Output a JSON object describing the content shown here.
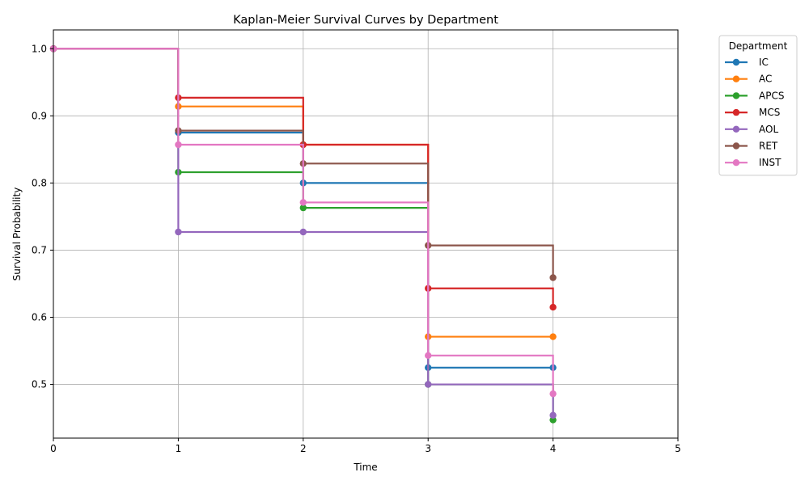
{
  "chart_data": {
    "type": "line",
    "step": "post",
    "title": "Kaplan-Meier Survival Curves by Department",
    "xlabel": "Time",
    "ylabel": "Survival Probability",
    "xlim": [
      0,
      5
    ],
    "ylim": [
      0.42,
      1.028
    ],
    "xticks": [
      0,
      1,
      2,
      3,
      4,
      5
    ],
    "yticks": [
      0.5,
      0.6,
      0.7,
      0.8,
      0.9,
      1.0
    ],
    "xtick_labels": [
      "0",
      "1",
      "2",
      "3",
      "4",
      "5"
    ],
    "ytick_labels": [
      "0.5",
      "0.6",
      "0.7",
      "0.8",
      "0.9",
      "1.0"
    ],
    "grid": true,
    "legend": {
      "title": "Department",
      "placement": "outside-right-top"
    },
    "series": [
      {
        "name": "IC",
        "color": "#1f77b4",
        "x": [
          0,
          1,
          2,
          3,
          4
        ],
        "y": [
          1.0,
          0.875,
          0.8,
          0.525,
          0.525
        ]
      },
      {
        "name": "AC",
        "color": "#ff7f0e",
        "x": [
          0,
          1,
          2,
          3,
          4
        ],
        "y": [
          1.0,
          0.914,
          0.857,
          0.571,
          0.571
        ]
      },
      {
        "name": "APCS",
        "color": "#2ca02c",
        "x": [
          0,
          1,
          2,
          3,
          4
        ],
        "y": [
          1.0,
          0.816,
          0.763,
          0.5,
          0.447
        ]
      },
      {
        "name": "MCS",
        "color": "#d62728",
        "x": [
          0,
          1,
          2,
          3,
          4
        ],
        "y": [
          1.0,
          0.927,
          0.857,
          0.643,
          0.615
        ]
      },
      {
        "name": "AOL",
        "color": "#9467bd",
        "x": [
          0,
          1,
          2,
          3,
          4
        ],
        "y": [
          1.0,
          0.727,
          0.727,
          0.5,
          0.454
        ]
      },
      {
        "name": "RET",
        "color": "#8c564b",
        "x": [
          0,
          1,
          2,
          3,
          4
        ],
        "y": [
          1.0,
          0.878,
          0.829,
          0.707,
          0.659
        ]
      },
      {
        "name": "INST",
        "color": "#e377c2",
        "x": [
          0,
          1,
          2,
          3,
          4
        ],
        "y": [
          1.0,
          0.857,
          0.771,
          0.543,
          0.486
        ]
      }
    ]
  }
}
